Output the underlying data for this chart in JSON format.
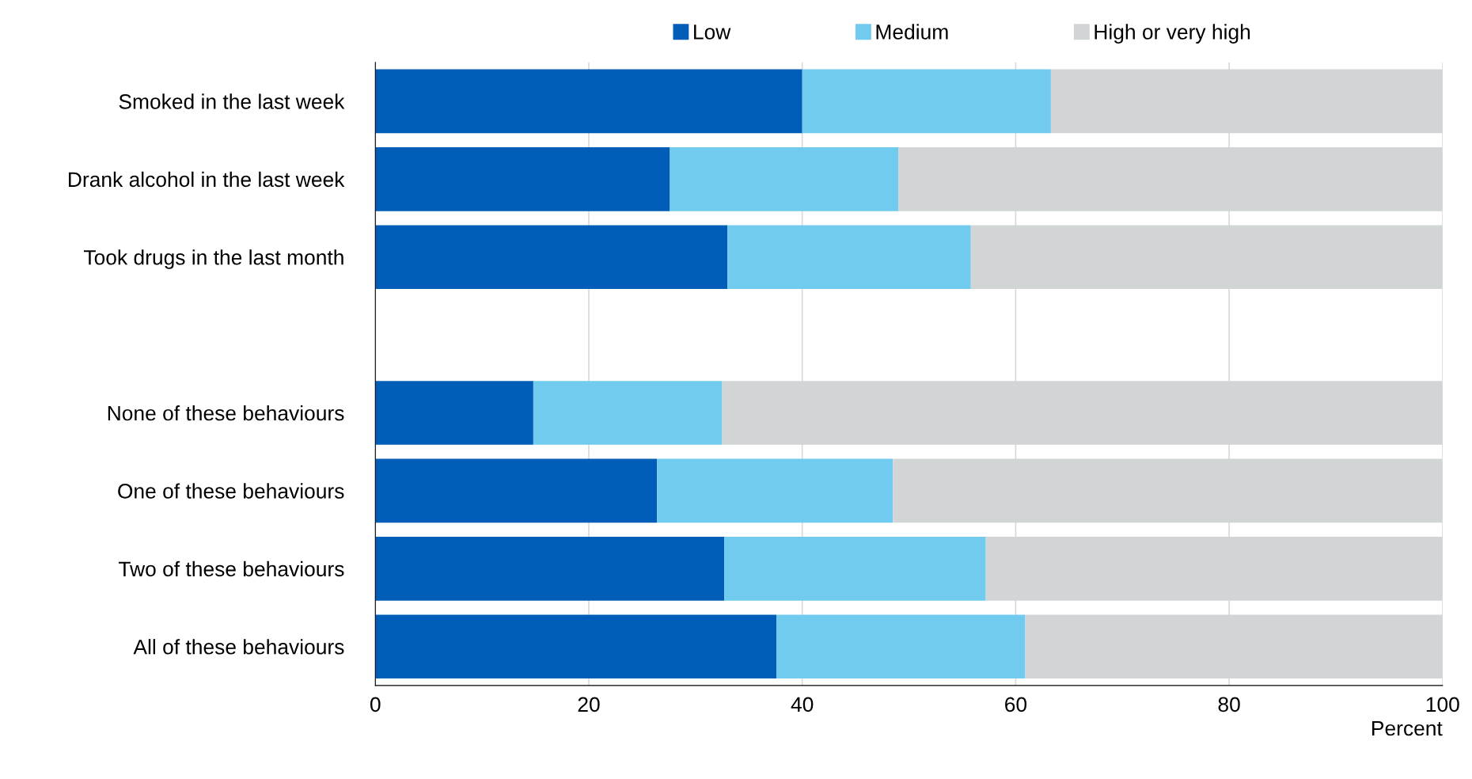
{
  "chart_data": {
    "type": "bar",
    "orientation": "horizontal",
    "stacked": true,
    "categories": [
      "Smoked in the last week",
      "Drank alcohol in the last week",
      "Took drugs in the last month",
      null,
      "None of these behaviours",
      "One of these behaviours",
      "Two of these behaviours",
      "All of these behaviours"
    ],
    "series": [
      {
        "name": "Low",
        "color": "#005eb8",
        "values": [
          40,
          27.6,
          33,
          null,
          14.8,
          26.4,
          32.7,
          37.6
        ]
      },
      {
        "name": "Medium",
        "color": "#70cbef",
        "values": [
          23.3,
          21.4,
          22.8,
          null,
          17.7,
          22.1,
          24.5,
          23.3
        ]
      },
      {
        "name": "High or very high",
        "color": "#d1d5d6",
        "values": [
          36.7,
          51,
          44.2,
          null,
          67.5,
          51.5,
          42.8,
          39.1
        ]
      }
    ],
    "xlabel": "Percent",
    "xlim": [
      0,
      100
    ],
    "xticks": [
      0,
      20,
      40,
      60,
      80,
      100
    ],
    "grid": "x",
    "legend": "top"
  }
}
